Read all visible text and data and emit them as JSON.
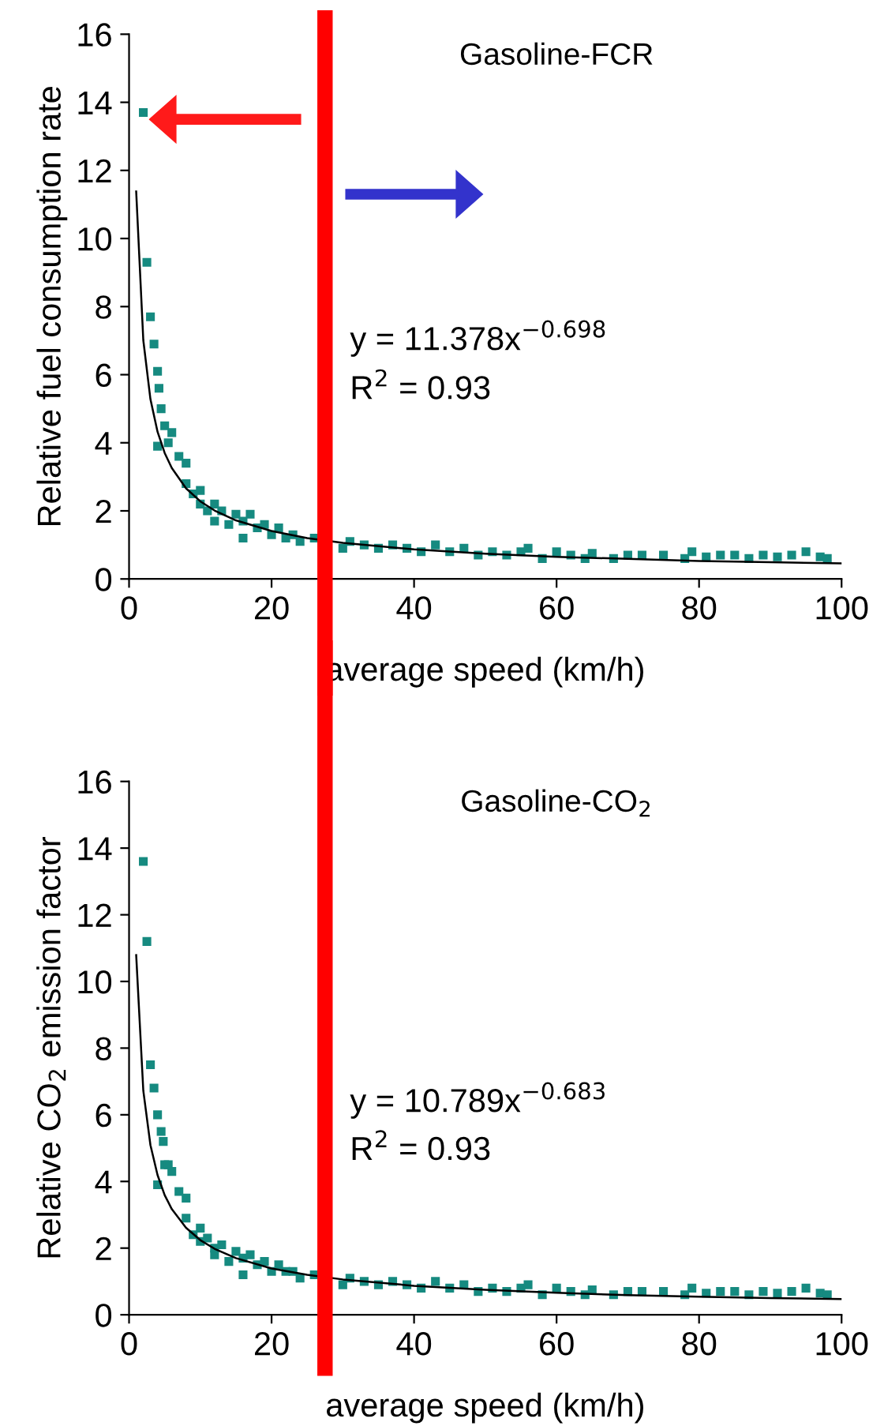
{
  "chart_data": [
    {
      "type": "scatter",
      "title": "Gasoline-FCR",
      "xlabel": "average speed (km/h)",
      "ylabel": "Relative fuel consumption rate",
      "xlim": [
        0,
        100
      ],
      "ylim": [
        0,
        16
      ],
      "xticks": [
        0,
        20,
        40,
        60,
        80,
        100
      ],
      "yticks": [
        0,
        2,
        4,
        6,
        8,
        10,
        12,
        14,
        16
      ],
      "grid": false,
      "legend": false,
      "annotations": [
        "y = 11.378x$^{−0.698}$",
        "R$^{2}$ = 0.93"
      ],
      "ref_lines": [
        {
          "axis": "x",
          "value": 27.5,
          "label": null,
          "color": "#ff0000"
        }
      ],
      "series": [
        {
          "marker": "square",
          "color": "#168a80",
          "x": [
            2,
            2.5,
            3,
            3.5,
            4,
            4.2,
            4.5,
            5,
            4,
            5.5,
            6,
            7,
            8,
            8,
            9,
            10,
            10,
            11,
            12,
            12,
            13,
            14,
            15,
            16,
            16,
            17,
            18,
            19,
            20,
            21,
            22,
            23,
            24,
            26,
            30,
            31,
            33,
            35,
            37,
            39,
            41,
            43,
            45,
            47,
            49,
            51,
            53,
            55,
            56,
            58,
            60,
            62,
            64,
            65,
            68,
            70,
            72,
            75,
            78,
            79,
            81,
            83,
            85,
            87,
            89,
            91,
            93,
            95,
            97,
            98
          ],
          "values": [
            13.7,
            9.3,
            7.7,
            6.9,
            6.1,
            5.6,
            5.0,
            4.5,
            3.9,
            4.0,
            4.3,
            3.6,
            3.4,
            2.8,
            2.5,
            2.6,
            2.2,
            2.0,
            2.2,
            1.7,
            2.0,
            1.6,
            1.9,
            1.7,
            1.2,
            1.9,
            1.5,
            1.6,
            1.3,
            1.5,
            1.2,
            1.3,
            1.1,
            1.2,
            0.9,
            1.1,
            1.0,
            0.9,
            1.0,
            0.9,
            0.8,
            1.0,
            0.8,
            0.9,
            0.7,
            0.8,
            0.7,
            0.8,
            0.9,
            0.6,
            0.8,
            0.7,
            0.6,
            0.75,
            0.6,
            0.7,
            0.7,
            0.7,
            0.6,
            0.8,
            0.65,
            0.7,
            0.7,
            0.6,
            0.7,
            0.65,
            0.7,
            0.8,
            0.65,
            0.6
          ]
        },
        {
          "type": "line",
          "color": "#000000",
          "x": [
            1,
            2,
            3,
            4,
            5,
            6,
            8,
            10,
            12,
            15,
            20,
            25,
            30,
            40,
            50,
            60,
            70,
            80,
            90,
            100
          ],
          "values": [
            11.38,
            7.01,
            5.28,
            4.32,
            3.7,
            3.26,
            2.66,
            2.28,
            2.01,
            1.72,
            1.41,
            1.2,
            1.06,
            0.87,
            0.74,
            0.65,
            0.59,
            0.53,
            0.49,
            0.46
          ]
        }
      ]
    },
    {
      "type": "scatter",
      "title": "Gasoline-CO$_{2}$",
      "xlabel": "average speed (km/h)",
      "ylabel": "Relative CO$_{2}$ emission factor",
      "xlim": [
        0,
        100
      ],
      "ylim": [
        0,
        16
      ],
      "xticks": [
        0,
        20,
        40,
        60,
        80,
        100
      ],
      "yticks": [
        0,
        2,
        4,
        6,
        8,
        10,
        12,
        14,
        16
      ],
      "grid": false,
      "legend": false,
      "annotations": [
        "y = 10.789x$^{−0.683}$",
        "R$^{2}$ = 0.93"
      ],
      "ref_lines": [
        {
          "axis": "x",
          "value": 27.5,
          "label": null,
          "color": "#ff0000"
        }
      ],
      "series": [
        {
          "marker": "square",
          "color": "#168a80",
          "x": [
            2,
            2.5,
            3,
            3.5,
            4,
            4.5,
            4.8,
            5,
            4,
            5.5,
            6,
            7,
            8,
            8,
            9,
            10,
            10,
            11,
            12,
            12,
            13,
            14,
            15,
            16,
            16,
            17,
            18,
            19,
            20,
            21,
            22,
            23,
            24,
            26,
            30,
            31,
            33,
            35,
            37,
            39,
            41,
            43,
            45,
            47,
            49,
            51,
            53,
            55,
            56,
            58,
            60,
            62,
            64,
            65,
            68,
            70,
            72,
            75,
            78,
            79,
            81,
            83,
            85,
            87,
            89,
            91,
            93,
            95,
            97,
            98
          ],
          "values": [
            13.6,
            11.2,
            7.5,
            6.8,
            6.0,
            5.5,
            5.2,
            4.5,
            3.9,
            4.5,
            4.3,
            3.7,
            3.5,
            2.9,
            2.4,
            2.6,
            2.2,
            2.3,
            1.8,
            2.0,
            2.1,
            1.6,
            1.9,
            1.7,
            1.2,
            1.8,
            1.5,
            1.6,
            1.3,
            1.5,
            1.3,
            1.3,
            1.1,
            1.2,
            0.9,
            1.1,
            1.0,
            0.9,
            1.0,
            0.9,
            0.8,
            1.0,
            0.8,
            0.9,
            0.7,
            0.8,
            0.7,
            0.8,
            0.9,
            0.6,
            0.8,
            0.7,
            0.6,
            0.75,
            0.6,
            0.7,
            0.7,
            0.7,
            0.6,
            0.8,
            0.65,
            0.7,
            0.7,
            0.6,
            0.7,
            0.65,
            0.7,
            0.8,
            0.65,
            0.6
          ]
        },
        {
          "type": "line",
          "color": "#000000",
          "x": [
            1,
            2,
            3,
            4,
            5,
            6,
            8,
            10,
            12,
            15,
            20,
            25,
            30,
            40,
            50,
            60,
            70,
            80,
            90,
            100
          ],
          "values": [
            10.79,
            6.72,
            5.09,
            4.19,
            3.59,
            3.17,
            2.61,
            2.24,
            1.98,
            1.7,
            1.39,
            1.2,
            1.06,
            0.87,
            0.75,
            0.66,
            0.59,
            0.54,
            0.5,
            0.47
          ]
        }
      ]
    }
  ]
}
